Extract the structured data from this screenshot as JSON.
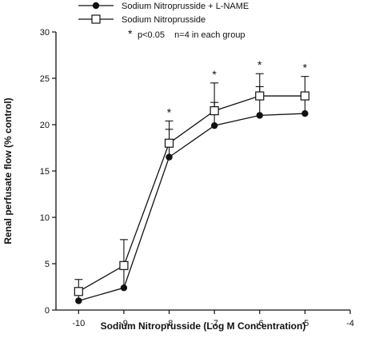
{
  "chart_data": {
    "type": "line",
    "xlabel": "Sodium Nitroprusside (Log M Concentration)",
    "ylabel": "Renal perfusate flow (% control)",
    "xlim": [
      -10.5,
      -4
    ],
    "ylim": [
      0,
      30
    ],
    "x_ticks": [
      -10,
      -9,
      -8,
      -7,
      -6,
      -5,
      -4
    ],
    "y_ticks": [
      0,
      5,
      10,
      15,
      20,
      25,
      30
    ],
    "grid": false,
    "legend_position": "top-left",
    "note": {
      "star": "*",
      "text": "p<0.05    n=4 in each group"
    },
    "series": [
      {
        "name": "Sodium Nitroprusside + L-NAME",
        "marker": "filled-circle",
        "x": [
          -10,
          -9,
          -8,
          -7,
          -6,
          -5
        ],
        "y": [
          1.0,
          2.4,
          16.5,
          19.9,
          21.0,
          21.2
        ],
        "error": [
          1.3,
          2.0,
          3.0,
          2.5,
          3.1,
          2.1
        ]
      },
      {
        "name": "Sodium Nitroprusside",
        "marker": "open-square",
        "x": [
          -10,
          -9,
          -8,
          -7,
          -6,
          -5
        ],
        "y": [
          2.0,
          4.8,
          18.0,
          21.5,
          23.1,
          23.1
        ],
        "error": [
          1.3,
          2.8,
          2.4,
          3.0,
          2.4,
          2.1
        ]
      }
    ],
    "significance_marks": [
      {
        "x": -8,
        "label": "*"
      },
      {
        "x": -7,
        "label": "*"
      },
      {
        "x": -6,
        "label": "*"
      },
      {
        "x": -5,
        "label": "*"
      }
    ]
  }
}
